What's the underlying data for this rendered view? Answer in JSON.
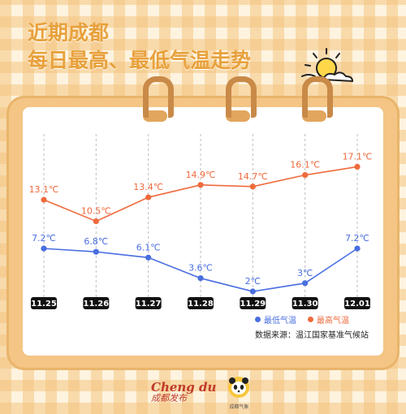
{
  "title": {
    "line1": "近期成都",
    "line2": "每日最高、最低气温走势"
  },
  "colors": {
    "high": "#ee6a3c",
    "low": "#4a6ee0",
    "title": "#e8a13c",
    "axis_label_bg": "#111111"
  },
  "chart_data": {
    "type": "line",
    "categories": [
      "11.25",
      "11.26",
      "11.27",
      "11.28",
      "11.29",
      "11.30",
      "12.01"
    ],
    "series": [
      {
        "name": "最高气温",
        "values": [
          13.1,
          10.5,
          13.4,
          14.9,
          14.7,
          16.1,
          17.1
        ],
        "labels": [
          "13.1℃",
          "10.5℃",
          "13.4℃",
          "14.9℃",
          "14.7℃",
          "16.1℃",
          "17.1℃"
        ]
      },
      {
        "name": "最低气温",
        "values": [
          7.2,
          6.8,
          6.1,
          3.6,
          2,
          3,
          7.2
        ],
        "labels": [
          "7.2℃",
          "6.8℃",
          "6.1℃",
          "3.6℃",
          "2℃",
          "3℃",
          "7.2℃"
        ]
      }
    ],
    "grid": "vertical dashed lines at each category",
    "legend_position": "bottom-right"
  },
  "legend": {
    "low_label": "最低气温",
    "high_label": "最高气温"
  },
  "source": "数据来源：温江国家基准气候站",
  "footer": {
    "brand_top": "Cheng du",
    "brand_bottom": "成都发布",
    "panda_caption": "成都气象"
  },
  "icons": {
    "sun": "sun-cloud-icon",
    "panda": "panda-logo-icon"
  }
}
